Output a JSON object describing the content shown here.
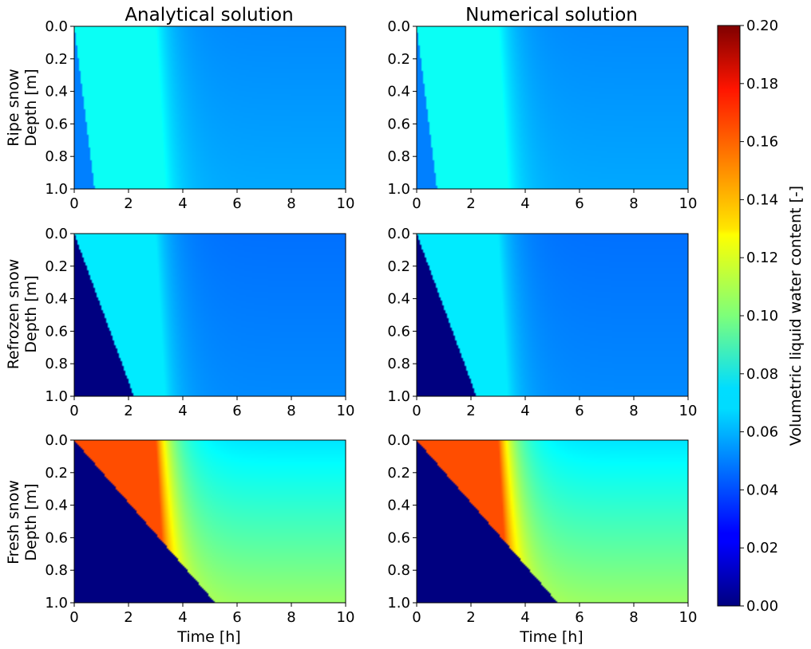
{
  "chart_data": {
    "type": "heatmap",
    "column_titles": [
      "Analytical solution",
      "Numerical solution"
    ],
    "row_labels": [
      {
        "line1": "Ripe snow",
        "line2": "Depth [m]"
      },
      {
        "line1": "Refrozen snow",
        "line2": "Depth [m]"
      },
      {
        "line1": "Fresh snow",
        "line2": "Depth [m]"
      }
    ],
    "xlabel": "Time [h]",
    "xlim": [
      0,
      10
    ],
    "ylim": [
      1.0,
      0.0
    ],
    "x_ticks": [
      "0",
      "2",
      "4",
      "6",
      "8",
      "10"
    ],
    "y_ticks": [
      "0.0",
      "0.2",
      "0.4",
      "0.6",
      "0.8",
      "1.0"
    ],
    "colorbar": {
      "label": "Volumetric liquid water content [-]",
      "range": [
        0.0,
        0.2
      ],
      "colormap": "jet",
      "ticks": [
        "0.00",
        "0.02",
        "0.04",
        "0.06",
        "0.08",
        "0.10",
        "0.12",
        "0.14",
        "0.16",
        "0.18",
        "0.20"
      ]
    },
    "panels": [
      {
        "row": "Ripe snow",
        "column": "Analytical solution",
        "initial_theta": 0.05,
        "infiltration_theta": 0.077,
        "front_end_time_h": 0.75,
        "rain_stop_time_h": 3.0,
        "drainage_surface_theta": 0.052,
        "drainage_bottom_theta": 0.058
      },
      {
        "row": "Ripe snow",
        "column": "Numerical solution",
        "initial_theta": 0.05,
        "infiltration_theta": 0.077,
        "front_end_time_h": 0.75,
        "rain_stop_time_h": 3.0,
        "drainage_surface_theta": 0.052,
        "drainage_bottom_theta": 0.058
      },
      {
        "row": "Refrozen snow",
        "column": "Analytical solution",
        "initial_theta": 0.0,
        "infiltration_theta": 0.071,
        "front_end_time_h": 2.2,
        "rain_stop_time_h": 3.0,
        "drainage_surface_theta": 0.047,
        "drainage_bottom_theta": 0.052
      },
      {
        "row": "Refrozen snow",
        "column": "Numerical solution",
        "initial_theta": 0.0,
        "infiltration_theta": 0.071,
        "front_end_time_h": 2.2,
        "rain_stop_time_h": 3.0,
        "drainage_surface_theta": 0.047,
        "drainage_bottom_theta": 0.052
      },
      {
        "row": "Fresh snow",
        "column": "Analytical solution",
        "initial_theta": 0.0,
        "infiltration_theta": 0.16,
        "front_end_time_h": 5.2,
        "rain_stop_time_h": 3.0,
        "drainage_surface_theta": 0.07,
        "drainage_bottom_theta": 0.105
      },
      {
        "row": "Fresh snow",
        "column": "Numerical solution",
        "initial_theta": 0.0,
        "infiltration_theta": 0.16,
        "front_end_time_h": 5.2,
        "rain_stop_time_h": 3.0,
        "drainage_surface_theta": 0.07,
        "drainage_bottom_theta": 0.105
      }
    ]
  }
}
